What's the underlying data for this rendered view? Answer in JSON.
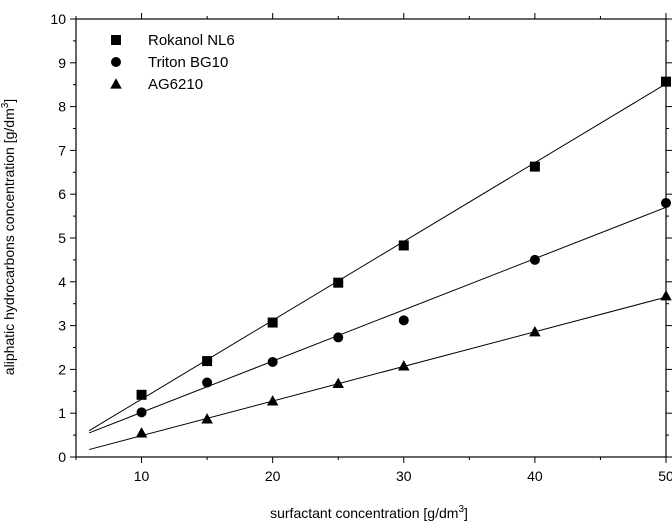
{
  "chart_data": {
    "type": "scatter",
    "xlabel": "surfactant concentration [g/dm",
    "xlabel_sup": "3",
    "xlabel_end": "]",
    "ylabel": "aliphatic hydrocarbons concentration [g/dm",
    "ylabel_sup": "3",
    "ylabel_end": "]",
    "xlim": [
      5,
      50
    ],
    "ylim": [
      0,
      10
    ],
    "xticks": [
      10,
      20,
      30,
      40,
      50
    ],
    "yticks": [
      0,
      1,
      2,
      3,
      4,
      5,
      6,
      7,
      8,
      9,
      10
    ],
    "grid": false,
    "legend_position": "top-left",
    "series": [
      {
        "name": "Rokanol NL6",
        "marker": "square",
        "color": "#000000",
        "points": [
          [
            10,
            1.42
          ],
          [
            15,
            2.19
          ],
          [
            20,
            3.07
          ],
          [
            25,
            3.98
          ],
          [
            30,
            4.83
          ],
          [
            40,
            6.63
          ],
          [
            50,
            8.57
          ]
        ],
        "fit": [
          [
            6,
            0.6
          ],
          [
            50,
            8.52
          ]
        ]
      },
      {
        "name": "Triton BG10",
        "marker": "circle",
        "color": "#000000",
        "points": [
          [
            10,
            1.02
          ],
          [
            15,
            1.7
          ],
          [
            20,
            2.17
          ],
          [
            25,
            2.73
          ],
          [
            30,
            3.12
          ],
          [
            40,
            4.5
          ],
          [
            50,
            5.8
          ]
        ],
        "fit": [
          [
            6,
            0.55
          ],
          [
            50,
            5.7
          ]
        ]
      },
      {
        "name": "AG6210",
        "marker": "triangle",
        "color": "#000000",
        "points": [
          [
            10,
            0.55
          ],
          [
            15,
            0.87
          ],
          [
            20,
            1.28
          ],
          [
            25,
            1.68
          ],
          [
            30,
            2.08
          ],
          [
            40,
            2.86
          ],
          [
            50,
            3.68
          ]
        ],
        "fit": [
          [
            6,
            0.17
          ],
          [
            50,
            3.65
          ]
        ]
      }
    ]
  }
}
